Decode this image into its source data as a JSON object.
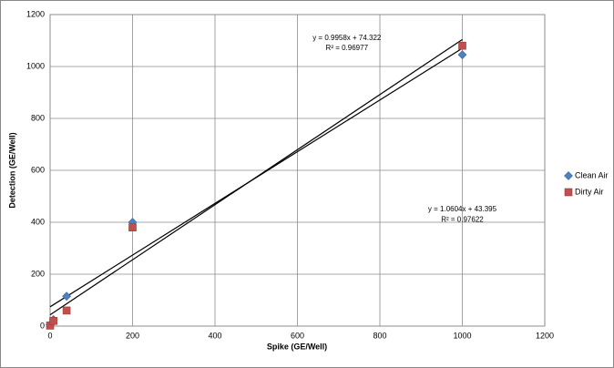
{
  "chart_data": {
    "type": "scatter",
    "x_label": "Spike (GE/Well)",
    "y_label": "Detection (GE/Well)",
    "x": [
      0,
      8,
      40,
      200,
      1000
    ],
    "series": [
      {
        "name": "Clean Air",
        "color": "#4f81bd",
        "marker": "diamond",
        "values": [
          5,
          25,
          115,
          400,
          1045
        ],
        "trendline": {
          "slope": 0.9958,
          "intercept": 74.322,
          "equation": "y = 0.9958x + 74.322",
          "r2": "R² = 0.96977"
        }
      },
      {
        "name": "Dirty Air",
        "color": "#c0504d",
        "marker": "square",
        "values": [
          2,
          20,
          60,
          380,
          1080
        ],
        "trendline": {
          "slope": 1.0604,
          "intercept": 43.395,
          "equation": "y = 1.0604x + 43.395",
          "r2": "R² = 0.97622"
        }
      }
    ],
    "xlim": [
      0,
      1200
    ],
    "xticks": [
      0,
      200,
      400,
      600,
      800,
      1000,
      1200
    ],
    "ylim": [
      0,
      1200
    ],
    "yticks": [
      0,
      200,
      400,
      600,
      800,
      1000,
      1200
    ],
    "grid": true,
    "legend": "right"
  }
}
